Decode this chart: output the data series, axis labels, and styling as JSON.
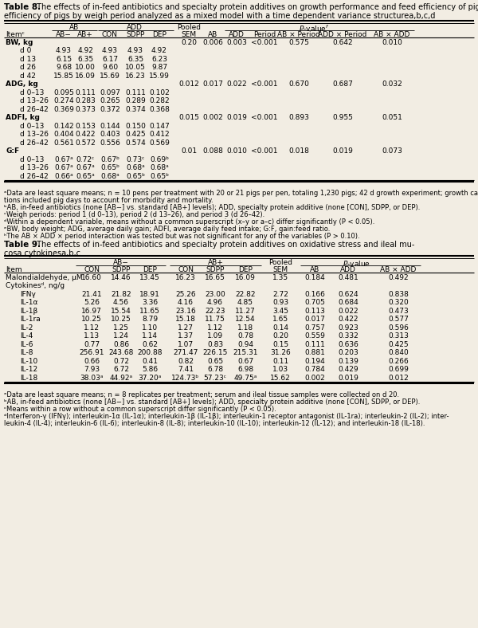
{
  "table8": {
    "title_bold": "Table 8.",
    "title_rest": " The effects of in-feed antibiotics and specialty protein additives on growth performance and feed efficiency of pigs by weigh period analyzed as a mixed model with a time dependent variance structure",
    "title_superscript": "a,b,c,d",
    "rows": [
      {
        "item": "BW, kg",
        "indent": false,
        "vals": [
          "",
          "",
          "",
          "",
          "",
          "0.20",
          "0.006",
          "0.003",
          "<0.001",
          "0.575",
          "0.642",
          "0.010"
        ],
        "bold_item": true
      },
      {
        "item": "d 0",
        "indent": true,
        "vals": [
          "4.93",
          "4.92",
          "4.93",
          "4.93",
          "4.92",
          "",
          "",
          "",
          "",
          "",
          "",
          ""
        ],
        "bold_item": false
      },
      {
        "item": "d 13",
        "indent": true,
        "vals": [
          "6.15",
          "6.35",
          "6.17",
          "6.35",
          "6.23",
          "",
          "",
          "",
          "",
          "",
          "",
          ""
        ],
        "bold_item": false
      },
      {
        "item": "d 26",
        "indent": true,
        "vals": [
          "9.68",
          "10.00",
          "9.60",
          "10.05",
          "9.87",
          "",
          "",
          "",
          "",
          "",
          "",
          ""
        ],
        "bold_item": false
      },
      {
        "item": "d 42",
        "indent": true,
        "vals": [
          "15.85",
          "16.09",
          "15.69",
          "16.23",
          "15.99",
          "",
          "",
          "",
          "",
          "",
          "",
          ""
        ],
        "bold_item": false
      },
      {
        "item": "ADG, kg",
        "indent": false,
        "vals": [
          "",
          "",
          "",
          "",
          "",
          "0.012",
          "0.017",
          "0.022",
          "<0.001",
          "0.670",
          "0.687",
          "0.032"
        ],
        "bold_item": true
      },
      {
        "item": "d 0–13",
        "indent": true,
        "vals": [
          "0.095",
          "0.111",
          "0.097",
          "0.111",
          "0.102",
          "",
          "",
          "",
          "",
          "",
          "",
          ""
        ],
        "bold_item": false
      },
      {
        "item": "d 13–26",
        "indent": true,
        "vals": [
          "0.274",
          "0.283",
          "0.265",
          "0.289",
          "0.282",
          "",
          "",
          "",
          "",
          "",
          "",
          ""
        ],
        "bold_item": false
      },
      {
        "item": "d 26–42",
        "indent": true,
        "vals": [
          "0.369",
          "0.373",
          "0.372",
          "0.374",
          "0.368",
          "",
          "",
          "",
          "",
          "",
          "",
          ""
        ],
        "bold_item": false
      },
      {
        "item": "ADFI, kg",
        "indent": false,
        "vals": [
          "",
          "",
          "",
          "",
          "",
          "0.015",
          "0.002",
          "0.019",
          "<0.001",
          "0.893",
          "0.955",
          "0.051"
        ],
        "bold_item": true
      },
      {
        "item": "d 0–13",
        "indent": true,
        "vals": [
          "0.142",
          "0.153",
          "0.144",
          "0.150",
          "0.147",
          "",
          "",
          "",
          "",
          "",
          "",
          ""
        ],
        "bold_item": false
      },
      {
        "item": "d 13–26",
        "indent": true,
        "vals": [
          "0.404",
          "0.422",
          "0.403",
          "0.425",
          "0.412",
          "",
          "",
          "",
          "",
          "",
          "",
          ""
        ],
        "bold_item": false
      },
      {
        "item": "d 26–42",
        "indent": true,
        "vals": [
          "0.561",
          "0.572",
          "0.556",
          "0.574",
          "0.569",
          "",
          "",
          "",
          "",
          "",
          "",
          ""
        ],
        "bold_item": false
      },
      {
        "item": "G:F",
        "indent": false,
        "vals": [
          "",
          "",
          "",
          "",
          "",
          "0.01",
          "0.088",
          "0.010",
          "<0.001",
          "0.018",
          "0.019",
          "0.073"
        ],
        "bold_item": true
      },
      {
        "item": "d 0–13",
        "indent": true,
        "vals": [
          "0.67ᵃ",
          "0.72ᶜ",
          "0.67ᵇ",
          "0.73ᶜ",
          "0.69ᵇ",
          "",
          "",
          "",
          "",
          "",
          "",
          ""
        ],
        "bold_item": false
      },
      {
        "item": "d 13–26",
        "indent": true,
        "vals": [
          "0.67ᵃ",
          "0.67ᵃ",
          "0.65ᵇ",
          "0.68ᵃ",
          "0.68ᵃ",
          "",
          "",
          "",
          "",
          "",
          "",
          ""
        ],
        "bold_item": false
      },
      {
        "item": "d 26–42",
        "indent": true,
        "vals": [
          "0.66ᵃ",
          "0.65ᵃ",
          "0.68ᵃ",
          "0.65ᵇ",
          "0.65ᵇ",
          "",
          "",
          "",
          "",
          "",
          "",
          ""
        ],
        "bold_item": false
      }
    ],
    "footnotes": [
      "ᵃData are least square means; n = 10 pens per treatment with 20 or 21 pigs per pen, totaling 1,230 pigs; 42 d growth experiment; growth calcula-",
      "tions included pig days to account for morbidity and mortality.",
      "ᵇAB, in-feed antibiotics (none [AB−] vs. standard [AB+] levels); ADD, specialty protein additive (none [CON], SDPP, or DEP).",
      "ᶜWeigh periods: period 1 (d 0–13), period 2 (d 13–26), and period 3 (d 26–42).",
      "ᵈWithin a dependent variable, means without a common superscript (x–y or a–c) differ significantly (P < 0.05).",
      "ᵉBW, body weight; ADG, average daily gain; ADFI, average daily feed intake; G:F, gain:feed ratio.",
      "ʰThe AB × ADD × period interaction was tested but was not significant for any of the variables (P > 0.10)."
    ]
  },
  "table9": {
    "title_bold": "Table 9.",
    "title_rest": " The effects of in-feed antibiotics and specialty protein additives on oxidative stress and ileal mu-cosa cytokines",
    "title_superscript": "a,b,c",
    "rows": [
      {
        "item": "Malondialdehyde, μM",
        "indent": false,
        "vals": [
          "16.60",
          "14.46",
          "13.45",
          "16.23",
          "16.65",
          "16.09",
          "1.35",
          "0.184",
          "0.481",
          "0.492"
        ],
        "bold_item": false
      },
      {
        "item": "Cytokinesᵈ, ng/g",
        "indent": false,
        "vals": [
          "",
          "",
          "",
          "",
          "",
          "",
          "",
          "",
          "",
          ""
        ],
        "bold_item": false
      },
      {
        "item": "IFNγ",
        "indent": true,
        "vals": [
          "21.41",
          "21.82",
          "18.91",
          "25.26",
          "23.00",
          "22.82",
          "2.72",
          "0.166",
          "0.624",
          "0.838"
        ],
        "bold_item": false
      },
      {
        "item": "IL-1α",
        "indent": true,
        "vals": [
          "5.26",
          "4.56",
          "3.36",
          "4.16",
          "4.96",
          "4.85",
          "0.93",
          "0.705",
          "0.684",
          "0.320"
        ],
        "bold_item": false
      },
      {
        "item": "IL-1β",
        "indent": true,
        "vals": [
          "16.97",
          "15.54",
          "11.65",
          "23.16",
          "22.23",
          "11.27",
          "3.45",
          "0.113",
          "0.022",
          "0.473"
        ],
        "bold_item": false
      },
      {
        "item": "IL-1ra",
        "indent": true,
        "vals": [
          "10.25",
          "10.25",
          "8.79",
          "15.18",
          "11.75",
          "12.54",
          "1.65",
          "0.017",
          "0.422",
          "0.577"
        ],
        "bold_item": false
      },
      {
        "item": "IL-2",
        "indent": true,
        "vals": [
          "1.12",
          "1.25",
          "1.10",
          "1.27",
          "1.12",
          "1.18",
          "0.14",
          "0.757",
          "0.923",
          "0.596"
        ],
        "bold_item": false
      },
      {
        "item": "IL-4",
        "indent": true,
        "vals": [
          "1.13",
          "1.24",
          "1.14",
          "1.37",
          "1.09",
          "0.78",
          "0.20",
          "0.559",
          "0.332",
          "0.313"
        ],
        "bold_item": false
      },
      {
        "item": "IL-6",
        "indent": true,
        "vals": [
          "0.77",
          "0.86",
          "0.62",
          "1.07",
          "0.83",
          "0.94",
          "0.15",
          "0.111",
          "0.636",
          "0.425"
        ],
        "bold_item": false
      },
      {
        "item": "IL-8",
        "indent": true,
        "vals": [
          "256.91",
          "243.68",
          "200.88",
          "271.47",
          "226.15",
          "215.31",
          "31.26",
          "0.881",
          "0.203",
          "0.840"
        ],
        "bold_item": false
      },
      {
        "item": "IL-10",
        "indent": true,
        "vals": [
          "0.66",
          "0.72",
          "0.41",
          "0.82",
          "0.65",
          "0.67",
          "0.11",
          "0.194",
          "0.139",
          "0.266"
        ],
        "bold_item": false
      },
      {
        "item": "IL-12",
        "indent": true,
        "vals": [
          "7.93",
          "6.72",
          "5.86",
          "7.41",
          "6.78",
          "6.98",
          "1.03",
          "0.784",
          "0.429",
          "0.699"
        ],
        "bold_item": false
      },
      {
        "item": "IL-18",
        "indent": true,
        "vals": [
          "38.03ᵃ",
          "44.92ᵃ",
          "37.20ᵃ",
          "124.73ᵇ",
          "57.23ᶜ",
          "49.75ᵃ",
          "15.62",
          "0.002",
          "0.019",
          "0.012"
        ],
        "bold_item": false
      }
    ],
    "footnotes": [
      "ᵃData are least square means; n = 8 replicates per treatment; serum and ileal tissue samples were collected on d 20.",
      "ᵇAB, in-feed antibiotics (none [AB−] vs. standard [AB+] levels); ADD, specialty protein additive (none [CON], SDPP, or DEP).",
      "ᶜMeans within a row without a common superscript differ significantly (P < 0.05).",
      "ᵈInterferon-γ (IFNγ); interleukin-1α (IL-1α); interleukin-1β (IL-1β); interleukin-1 receptor antagonist (IL-1ra); interleukin-2 (IL-2); inter-",
      "leukin-4 (IL-4); interleukin-6 (IL-6); interleukin-8 (IL-8); interleukin-10 (IL-10); interleukin-12 (IL-12); and interleukin-18 (IL-18)."
    ]
  },
  "bg_color": "#f2ede3",
  "text_color": "#000000",
  "font_size": 6.5,
  "footnote_font_size": 6.0,
  "title_font_size": 7.5
}
